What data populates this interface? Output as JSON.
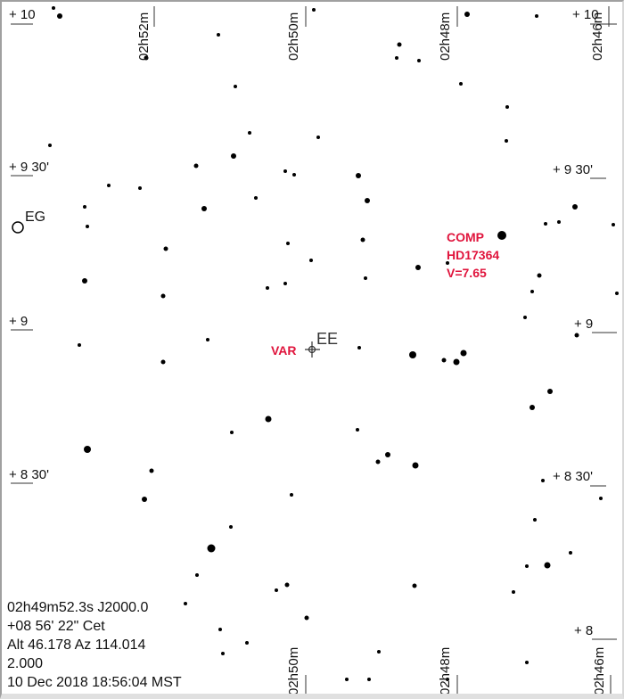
{
  "ra_labels_top": [
    "02h52m",
    "02h50m",
    "02h48m",
    "02h46m"
  ],
  "ra_labels_bottom": [
    "02h50m",
    "02h48m",
    "02h46m"
  ],
  "dec_labels_left": [
    "+ 10",
    "+ 9 30'",
    "+ 9",
    "+ 8 30'"
  ],
  "dec_labels_right": [
    "+ 10",
    "+ 9 30'",
    "+ 9",
    "+ 8 30'",
    "+ 8"
  ],
  "objects": {
    "eg": "EG",
    "ee": "EE",
    "var": "VAR",
    "comp": {
      "name": "COMP",
      "id": "HD17364",
      "mag": "V=7.65"
    }
  },
  "info": {
    "ra": "02h49m52.3s  J2000.0",
    "dec": "+08 56' 22\"      Cet",
    "altaz": "Alt 46.178  Az 114.014",
    "fov": "2.000",
    "datetime": "10 Dec 2018 18:56:04 MST"
  },
  "colors": {
    "label_red": "#e0143c",
    "star": "#000000"
  }
}
